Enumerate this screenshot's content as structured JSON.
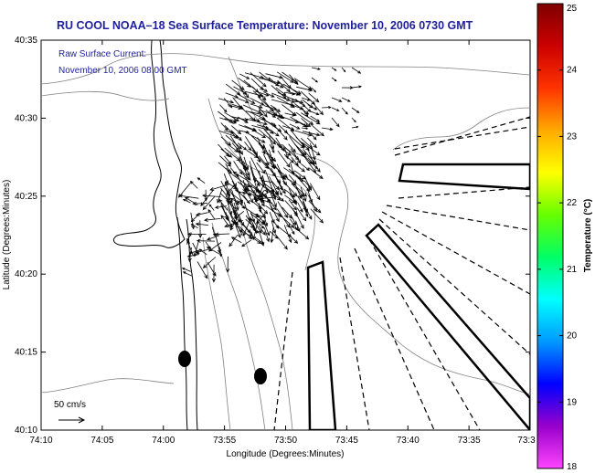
{
  "chart_data": {
    "type": "vector-field map",
    "title": "RU COOL  NOAA–18  Sea Surface Temperature:  November 10, 2006 0730 GMT",
    "annotation_lines": [
      "Raw Surface Current:",
      "November 10, 2006 08:00 GMT"
    ],
    "xlabel": "Longitude (Degrees:Minutes)",
    "ylabel": "Latitude (Degrees:Minutes)",
    "x_ticks": [
      "74:10",
      "74:05",
      "74:00",
      "73:55",
      "73:50",
      "73:45",
      "73:40",
      "73:35",
      "73:3"
    ],
    "y_ticks": [
      "40:35",
      "40:30",
      "40:25",
      "40:20",
      "40:15",
      "40:10"
    ],
    "xlim": [
      -74.1667,
      -73.5
    ],
    "ylim": [
      40.1667,
      40.5833
    ],
    "scale_arrow_label": "50 cm/s",
    "colorbar": {
      "label": "Temperature (°C)",
      "ticks": [
        "25",
        "24",
        "23",
        "22",
        "21",
        "20",
        "19",
        "18"
      ],
      "range": [
        18,
        25
      ],
      "colors": [
        "#ff44ff",
        "#9900cc",
        "#0000ff",
        "#0099ff",
        "#00ffff",
        "#00ff66",
        "#66ff00",
        "#ffff00",
        "#ffaa00",
        "#ff3300",
        "#cc0000",
        "#7f0000"
      ]
    },
    "markers": [
      {
        "lon": -73.9783,
        "lat": 40.2472
      },
      {
        "lon": -73.9214,
        "lat": 40.2264
      }
    ],
    "vector_field": {
      "region": {
        "lon": [
          -73.97,
          -73.8
        ],
        "lat": [
          40.31,
          40.54
        ]
      },
      "dominant_flow": "toward southeast, strongest in the central cluster",
      "max_speed_cm_s": 55
    }
  }
}
